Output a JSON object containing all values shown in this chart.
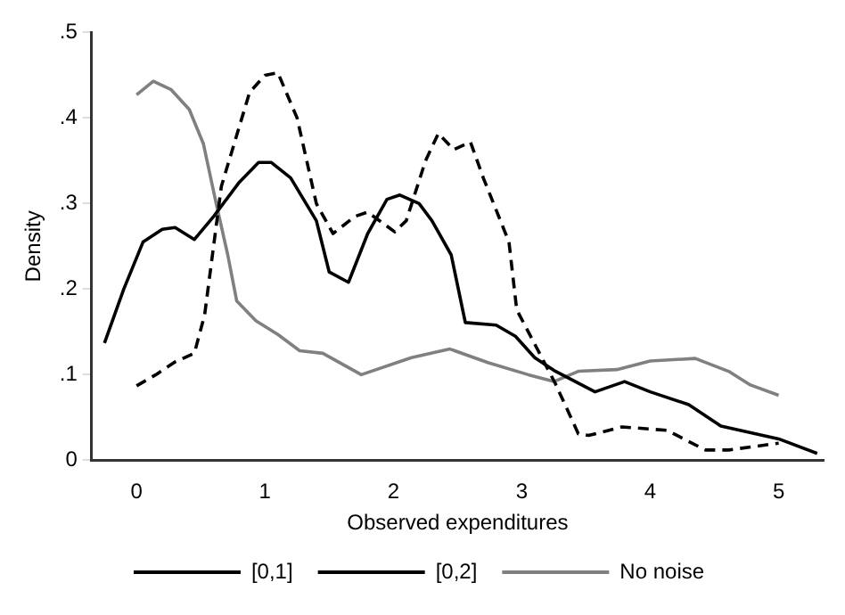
{
  "chart_data": {
    "type": "line",
    "xlabel": "Observed expenditures",
    "ylabel": "Density",
    "xlim": [
      -0.35,
      5.35
    ],
    "xticks": [
      0,
      1,
      2,
      3,
      4,
      5
    ],
    "ylim": [
      0,
      0.5
    ],
    "yticks": [
      {
        "value": 0,
        "label": "0"
      },
      {
        "value": 0.1,
        "label": ".1"
      },
      {
        "value": 0.2,
        "label": ".2"
      },
      {
        "value": 0.3,
        "label": ".3"
      },
      {
        "value": 0.4,
        "label": ".4"
      },
      {
        "value": 0.5,
        "label": ".5"
      }
    ],
    "grid": false,
    "legend": "bottom",
    "marker": "none",
    "series": [
      {
        "name": "[0,1]",
        "color": "#000000",
        "line_style": "solid",
        "x": [
          -0.25,
          -0.1,
          0.05,
          0.2,
          0.3,
          0.45,
          0.6,
          0.8,
          0.95,
          1.05,
          1.2,
          1.4,
          1.5,
          1.65,
          1.8,
          1.95,
          2.05,
          2.2,
          2.3,
          2.45,
          2.56,
          2.8,
          2.95,
          3.1,
          3.25,
          3.57,
          3.8,
          4.0,
          4.3,
          4.55,
          5.0,
          5.3
        ],
        "values": [
          0.137,
          0.2,
          0.255,
          0.27,
          0.272,
          0.258,
          0.285,
          0.325,
          0.348,
          0.348,
          0.33,
          0.28,
          0.22,
          0.208,
          0.265,
          0.305,
          0.31,
          0.3,
          0.28,
          0.24,
          0.161,
          0.158,
          0.145,
          0.12,
          0.105,
          0.08,
          0.092,
          0.08,
          0.065,
          0.04,
          0.025,
          0.008
        ]
      },
      {
        "name": "[0,2]",
        "color": "#000000",
        "line_style": "dashed",
        "x": [
          0,
          0.15,
          0.3,
          0.45,
          0.53,
          0.66,
          0.88,
          1.0,
          1.1,
          1.25,
          1.4,
          1.53,
          1.7,
          1.8,
          2.01,
          2.1,
          2.25,
          2.35,
          2.47,
          2.6,
          2.7,
          2.9,
          2.96,
          3.26,
          3.44,
          3.52,
          3.78,
          4.13,
          4.43,
          4.61,
          5.0
        ],
        "values": [
          0.087,
          0.1,
          0.115,
          0.125,
          0.17,
          0.32,
          0.43,
          0.45,
          0.453,
          0.4,
          0.3,
          0.265,
          0.285,
          0.29,
          0.267,
          0.28,
          0.35,
          0.382,
          0.363,
          0.372,
          0.33,
          0.255,
          0.176,
          0.09,
          0.031,
          0.029,
          0.039,
          0.035,
          0.012,
          0.012,
          0.02
        ]
      },
      {
        "name": "No noise",
        "color": "#808080",
        "line_style": "solid",
        "x": [
          0,
          0.13,
          0.27,
          0.41,
          0.52,
          0.62,
          0.71,
          0.78,
          0.93,
          1.1,
          1.27,
          1.45,
          1.75,
          2.14,
          2.44,
          2.74,
          3.05,
          3.25,
          3.44,
          3.74,
          4.0,
          4.35,
          4.61,
          4.78,
          5.0
        ],
        "values": [
          0.427,
          0.443,
          0.433,
          0.41,
          0.37,
          0.3,
          0.24,
          0.186,
          0.163,
          0.147,
          0.128,
          0.125,
          0.1,
          0.12,
          0.13,
          0.114,
          0.1,
          0.092,
          0.104,
          0.106,
          0.116,
          0.119,
          0.104,
          0.088,
          0.076
        ]
      }
    ]
  }
}
